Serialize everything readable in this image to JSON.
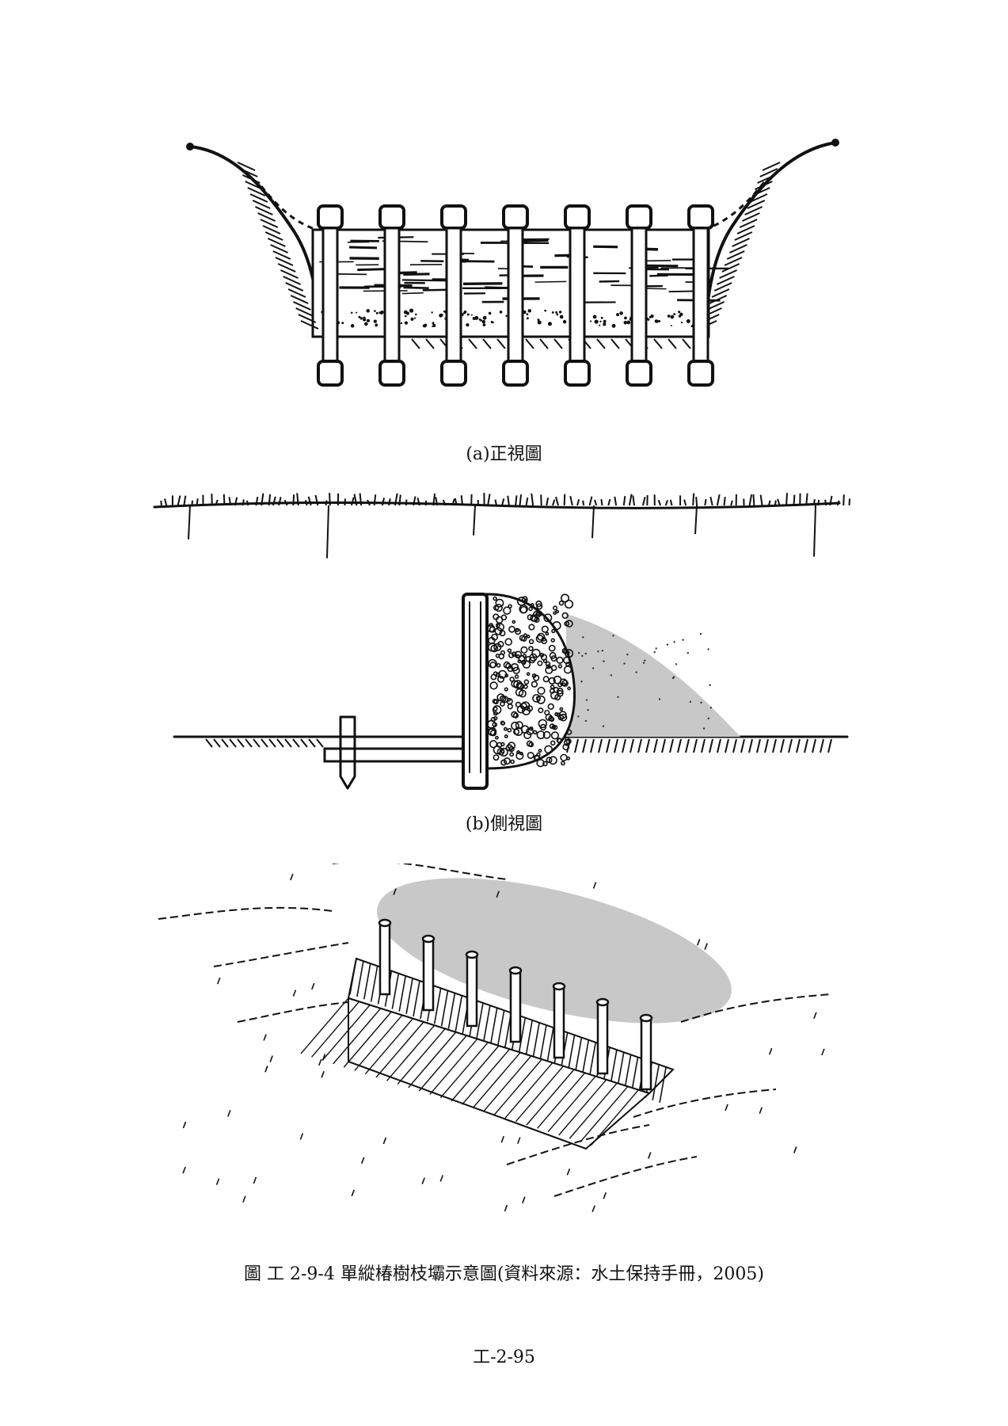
{
  "figures": {
    "front_view_caption": "(a)正視圖",
    "side_view_caption": "(b)側視圖"
  },
  "figure_caption": "圖 工 2-9-4 單縱椿樹枝壩示意圖(資料來源：水土保持手冊，2005)",
  "page_number": "工-2-95"
}
